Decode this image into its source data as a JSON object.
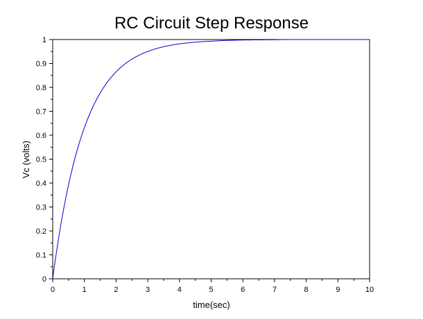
{
  "chart_data": {
    "type": "line",
    "title": "RC Circuit Step Response",
    "xlabel": "time(sec)",
    "ylabel": "Vc (volts)",
    "xlim": [
      0,
      10
    ],
    "ylim": [
      0,
      1
    ],
    "x_ticks": [
      0,
      1,
      2,
      3,
      4,
      5,
      6,
      7,
      8,
      9,
      10
    ],
    "y_ticks": [
      0,
      0.1,
      0.2,
      0.3,
      0.4,
      0.5,
      0.6,
      0.7,
      0.8,
      0.9,
      1
    ],
    "x_tick_labels": [
      "0",
      "1",
      "2",
      "3",
      "4",
      "5",
      "6",
      "7",
      "8",
      "9",
      "10"
    ],
    "y_tick_labels": [
      "0",
      "0.1",
      "0.2",
      "0.3",
      "0.4",
      "0.5",
      "0.6",
      "0.7",
      "0.8",
      "0.9",
      "1"
    ],
    "grid": false,
    "legend": null,
    "series": [
      {
        "name": "Vc",
        "color": "#0000cc",
        "x": [
          0,
          0.5,
          1,
          1.5,
          2,
          2.5,
          3,
          3.5,
          4,
          4.5,
          5,
          6,
          7,
          8,
          9,
          10
        ],
        "values": [
          0,
          0.393,
          0.632,
          0.777,
          0.865,
          0.918,
          0.95,
          0.97,
          0.982,
          0.989,
          0.993,
          0.998,
          0.999,
          1.0,
          1.0,
          1.0
        ]
      }
    ]
  }
}
